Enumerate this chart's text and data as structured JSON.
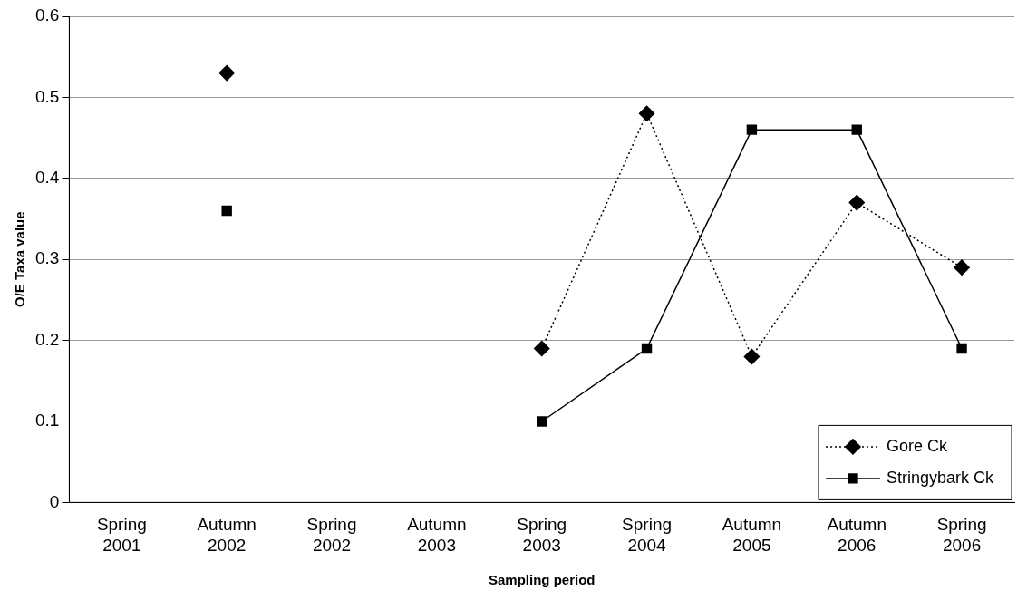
{
  "chart_data": {
    "type": "line",
    "xlabel": "Sampling period",
    "ylabel": "O/E Taxa value",
    "categories": [
      "Spring 2001",
      "Autumn 2002",
      "Spring 2002",
      "Autumn 2003",
      "Spring 2003",
      "Spring 2004",
      "Autumn 2005",
      "Autumn 2006",
      "Spring 2006"
    ],
    "series": [
      {
        "name": "Gore Ck",
        "color": "#000000",
        "marker": "diamond",
        "line_style": "dotted",
        "values": [
          null,
          0.53,
          null,
          null,
          0.19,
          0.48,
          0.18,
          0.37,
          0.29
        ]
      },
      {
        "name": "Stringybark Ck",
        "color": "#000000",
        "marker": "square",
        "line_style": "solid",
        "values": [
          null,
          0.36,
          null,
          null,
          0.1,
          0.19,
          0.46,
          0.46,
          0.19
        ]
      }
    ],
    "ylim": [
      0,
      0.6
    ],
    "yticks": [
      0,
      0.1,
      0.2,
      0.3,
      0.4,
      0.5,
      0.6
    ],
    "grid": "y",
    "legend": "bottom right"
  }
}
